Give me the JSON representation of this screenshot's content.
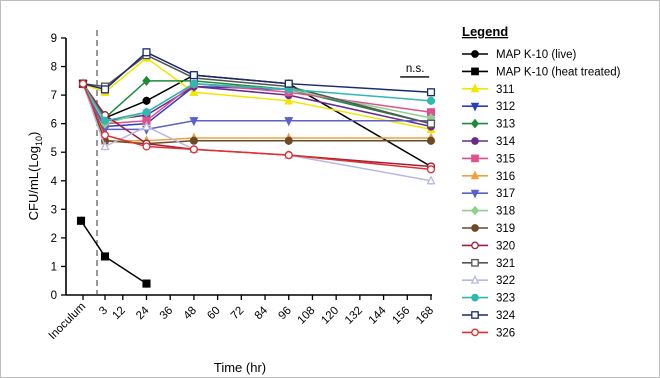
{
  "chart_data": {
    "type": "line",
    "xlabel": "Time (hr)",
    "ylabel": "CFU/mL(Log10)",
    "ylabel_main": "CFU/mL(Log",
    "ylabel_sub": "10",
    "ylabel_end": ")",
    "ylim": [
      0,
      9
    ],
    "yticks": [
      0,
      1,
      2,
      3,
      4,
      5,
      6,
      7,
      8,
      9
    ],
    "xticks": [
      {
        "t": 0,
        "label": "Inoculum"
      },
      {
        "t": 3,
        "label": "3"
      },
      {
        "t": 12,
        "label": "12"
      },
      {
        "t": 24,
        "label": "24"
      },
      {
        "t": 36,
        "label": "36"
      },
      {
        "t": 48,
        "label": "48"
      },
      {
        "t": 60,
        "label": "60"
      },
      {
        "t": 72,
        "label": "72"
      },
      {
        "t": 84,
        "label": "84"
      },
      {
        "t": 96,
        "label": "96"
      },
      {
        "t": 108,
        "label": "108"
      },
      {
        "t": 120,
        "label": "120"
      },
      {
        "t": 132,
        "label": "132"
      },
      {
        "t": 144,
        "label": "144"
      },
      {
        "t": 156,
        "label": "156"
      },
      {
        "t": 168,
        "label": "168"
      }
    ],
    "legend_title": "Legend",
    "legend_position": "right",
    "annotation": "n.s.",
    "grid": false,
    "series": [
      {
        "name": "MAP K-10 (live)",
        "color": "#000000",
        "marker": "circle",
        "x": [
          0,
          3,
          24,
          48,
          96,
          168
        ],
        "y": [
          7.4,
          6.2,
          6.8,
          7.7,
          7.4,
          4.5
        ]
      },
      {
        "name": "MAP K-10 (heat treated)",
        "color": "#000000",
        "marker": "square",
        "x": [
          -12,
          3,
          24
        ],
        "y": [
          2.6,
          1.35,
          0.4
        ]
      },
      {
        "name": "311",
        "color": "#f2e600",
        "marker": "triangle",
        "x": [
          0,
          3,
          24,
          48,
          96,
          168
        ],
        "y": [
          7.4,
          7.1,
          8.3,
          7.1,
          6.8,
          5.8
        ]
      },
      {
        "name": "312",
        "color": "#2a3fbf",
        "marker": "triangle-down",
        "x": [
          0,
          3,
          24,
          48,
          96,
          168
        ],
        "y": [
          7.4,
          5.9,
          6.0,
          7.3,
          7.2,
          6.0
        ]
      },
      {
        "name": "313",
        "color": "#1e8a3a",
        "marker": "diamond",
        "x": [
          0,
          3,
          24,
          48,
          96,
          168
        ],
        "y": [
          7.4,
          6.2,
          7.5,
          7.5,
          7.2,
          6.0
        ]
      },
      {
        "name": "314",
        "color": "#6a2a8c",
        "marker": "circle",
        "x": [
          0,
          3,
          24,
          48,
          96,
          168
        ],
        "y": [
          7.4,
          6.1,
          6.3,
          7.3,
          7.0,
          5.9
        ]
      },
      {
        "name": "315",
        "color": "#e0508c",
        "marker": "square",
        "x": [
          0,
          3,
          24,
          48,
          96,
          168
        ],
        "y": [
          7.4,
          6.0,
          6.1,
          7.4,
          7.1,
          6.4
        ]
      },
      {
        "name": "316",
        "color": "#f0a040",
        "marker": "triangle",
        "x": [
          0,
          3,
          24,
          48,
          96,
          168
        ],
        "y": [
          7.4,
          5.4,
          5.4,
          5.5,
          5.5,
          5.5
        ]
      },
      {
        "name": "317",
        "color": "#5a62c8",
        "marker": "triangle-down",
        "x": [
          0,
          3,
          24,
          48,
          96,
          168
        ],
        "y": [
          7.4,
          5.8,
          5.8,
          6.1,
          6.1,
          6.1
        ]
      },
      {
        "name": "318",
        "color": "#8fd08f",
        "marker": "diamond",
        "x": [
          0,
          3,
          24,
          48,
          96,
          168
        ],
        "y": [
          7.4,
          6.0,
          6.4,
          7.4,
          7.2,
          6.2
        ]
      },
      {
        "name": "319",
        "color": "#6b4a26",
        "marker": "circle",
        "x": [
          0,
          3,
          24,
          48,
          96,
          168
        ],
        "y": [
          7.4,
          5.4,
          5.3,
          5.4,
          5.4,
          5.4
        ]
      },
      {
        "name": "320",
        "color": "#a0203c",
        "marker": "circle-open",
        "x": [
          0,
          3,
          24,
          48,
          96,
          168
        ],
        "y": [
          7.4,
          6.3,
          5.3,
          5.1,
          4.9,
          4.5
        ]
      },
      {
        "name": "321",
        "color": "#555555",
        "marker": "square-open",
        "x": [
          0,
          3,
          24,
          48,
          96,
          168
        ],
        "y": [
          7.4,
          7.3,
          8.4,
          7.6,
          7.3,
          6.0
        ]
      },
      {
        "name": "322",
        "color": "#b8b8e0",
        "marker": "triangle-open",
        "x": [
          0,
          3,
          24,
          48,
          96,
          168
        ],
        "y": [
          7.4,
          5.2,
          5.9,
          5.1,
          4.9,
          4.0
        ]
      },
      {
        "name": "323",
        "color": "#30b8b0",
        "marker": "circle",
        "x": [
          0,
          3,
          24,
          48,
          96,
          168
        ],
        "y": [
          7.4,
          6.1,
          6.4,
          7.4,
          7.2,
          6.8
        ]
      },
      {
        "name": "324",
        "color": "#1a2a6c",
        "marker": "square-open",
        "x": [
          0,
          3,
          24,
          48,
          96,
          168
        ],
        "y": [
          7.4,
          7.2,
          8.5,
          7.7,
          7.4,
          7.1
        ]
      },
      {
        "name": "326",
        "color": "#e03030",
        "marker": "circle-open",
        "x": [
          0,
          3,
          24,
          48,
          96,
          168
        ],
        "y": [
          7.4,
          5.6,
          5.2,
          5.1,
          4.9,
          4.4
        ]
      }
    ]
  }
}
